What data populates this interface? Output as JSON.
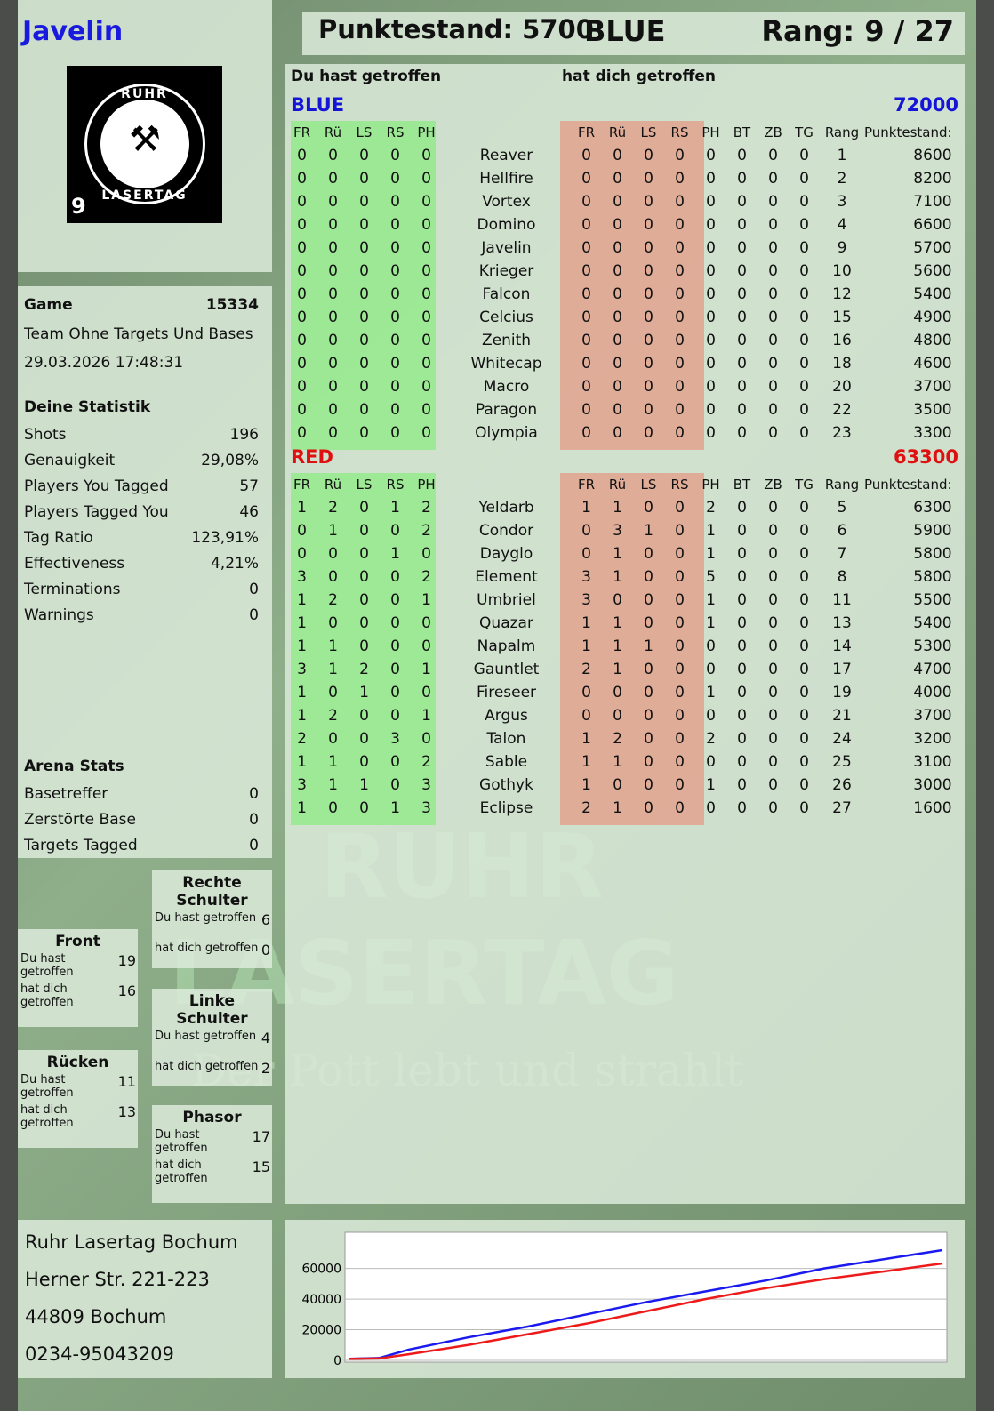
{
  "player": {
    "name": "Javelin",
    "score_label": "Punktestand: 5700",
    "team": "BLUE",
    "rank_label": "Rang: 9 / 27",
    "logo_text": "RUHR LASERTAG",
    "logo_number": "9"
  },
  "game": {
    "label": "Game",
    "id": "15334",
    "mode": "Team Ohne Targets Und Bases",
    "datetime": "29.03.2026 17:48:31"
  },
  "stats": {
    "title": "Deine Statistik",
    "rows": [
      [
        "Shots",
        "196"
      ],
      [
        "Genauigkeit",
        "29,08%"
      ],
      [
        "Players You Tagged",
        "57"
      ],
      [
        "Players Tagged You",
        "46"
      ],
      [
        "Tag Ratio",
        "123,91%"
      ],
      [
        "Effectiveness",
        "4,21%"
      ],
      [
        "Terminations",
        "0"
      ],
      [
        "Warnings",
        "0"
      ]
    ]
  },
  "arena": {
    "title": "Arena Stats",
    "rows": [
      [
        "Basetreffer",
        "0"
      ],
      [
        "Zerstörte Base",
        "0"
      ],
      [
        "Targets Tagged",
        "0"
      ]
    ]
  },
  "hitzones": [
    {
      "title": "Rechte Schulter",
      "you_hit_label": "Du hast getroffen",
      "you_hit": "6",
      "hit_you_label": "hat dich getroffen",
      "hit_you": "0"
    },
    {
      "title": "Front",
      "you_hit_label": "Du hast getroffen",
      "you_hit": "19",
      "hit_you_label": "hat dich getroffen",
      "hit_you": "16"
    },
    {
      "title": "Linke Schulter",
      "you_hit_label": "Du hast getroffen",
      "you_hit": "4",
      "hit_you_label": "hat dich getroffen",
      "hit_you": "2"
    },
    {
      "title": "Rücken",
      "you_hit_label": "Du hast getroffen",
      "you_hit": "11",
      "hit_you_label": "hat dich getroffen",
      "hit_you": "13"
    },
    {
      "title": "Phasor",
      "you_hit_label": "Du hast getroffen",
      "you_hit": "17",
      "hit_you_label": "hat dich getroffen",
      "hit_you": "15"
    }
  ],
  "address": [
    "Ruhr Lasertag Bochum",
    "Herner Str. 221-223",
    "44809 Bochum",
    "0234-95043209"
  ],
  "watermark": {
    "line1": "RUHR",
    "line2": "LASERTAG",
    "slogan": "Der Pott lebt und strahlt"
  },
  "table": {
    "you_hit_heading": "Du hast getroffen",
    "hit_you_heading": "hat dich getroffen",
    "columns": [
      "FR",
      "Rü",
      "LS",
      "RS",
      "PH",
      "",
      "FR",
      "Rü",
      "LS",
      "RS",
      "PH",
      "BT",
      "ZB",
      "TG",
      "Rang",
      "Punktestand:"
    ],
    "teams": [
      {
        "name": "BLUE",
        "score": "72000",
        "color": "#1515d8",
        "rows": [
          [
            "0",
            "0",
            "0",
            "0",
            "0",
            "Reaver",
            "0",
            "0",
            "0",
            "0",
            "0",
            "0",
            "0",
            "0",
            "1",
            "8600"
          ],
          [
            "0",
            "0",
            "0",
            "0",
            "0",
            "Hellfire",
            "0",
            "0",
            "0",
            "0",
            "0",
            "0",
            "0",
            "0",
            "2",
            "8200"
          ],
          [
            "0",
            "0",
            "0",
            "0",
            "0",
            "Vortex",
            "0",
            "0",
            "0",
            "0",
            "0",
            "0",
            "0",
            "0",
            "3",
            "7100"
          ],
          [
            "0",
            "0",
            "0",
            "0",
            "0",
            "Domino",
            "0",
            "0",
            "0",
            "0",
            "0",
            "0",
            "0",
            "0",
            "4",
            "6600"
          ],
          [
            "0",
            "0",
            "0",
            "0",
            "0",
            "Javelin",
            "0",
            "0",
            "0",
            "0",
            "0",
            "0",
            "0",
            "0",
            "9",
            "5700"
          ],
          [
            "0",
            "0",
            "0",
            "0",
            "0",
            "Krieger",
            "0",
            "0",
            "0",
            "0",
            "0",
            "0",
            "0",
            "0",
            "10",
            "5600"
          ],
          [
            "0",
            "0",
            "0",
            "0",
            "0",
            "Falcon",
            "0",
            "0",
            "0",
            "0",
            "0",
            "0",
            "0",
            "0",
            "12",
            "5400"
          ],
          [
            "0",
            "0",
            "0",
            "0",
            "0",
            "Celcius",
            "0",
            "0",
            "0",
            "0",
            "0",
            "0",
            "0",
            "0",
            "15",
            "4900"
          ],
          [
            "0",
            "0",
            "0",
            "0",
            "0",
            "Zenith",
            "0",
            "0",
            "0",
            "0",
            "0",
            "0",
            "0",
            "0",
            "16",
            "4800"
          ],
          [
            "0",
            "0",
            "0",
            "0",
            "0",
            "Whitecap",
            "0",
            "0",
            "0",
            "0",
            "0",
            "0",
            "0",
            "0",
            "18",
            "4600"
          ],
          [
            "0",
            "0",
            "0",
            "0",
            "0",
            "Macro",
            "0",
            "0",
            "0",
            "0",
            "0",
            "0",
            "0",
            "0",
            "20",
            "3700"
          ],
          [
            "0",
            "0",
            "0",
            "0",
            "0",
            "Paragon",
            "0",
            "0",
            "0",
            "0",
            "0",
            "0",
            "0",
            "0",
            "22",
            "3500"
          ],
          [
            "0",
            "0",
            "0",
            "0",
            "0",
            "Olympia",
            "0",
            "0",
            "0",
            "0",
            "0",
            "0",
            "0",
            "0",
            "23",
            "3300"
          ]
        ]
      },
      {
        "name": "RED",
        "score": "63300",
        "color": "#e01010",
        "rows": [
          [
            "1",
            "2",
            "0",
            "1",
            "2",
            "Yeldarb",
            "1",
            "1",
            "0",
            "0",
            "2",
            "0",
            "0",
            "0",
            "5",
            "6300"
          ],
          [
            "0",
            "1",
            "0",
            "0",
            "2",
            "Condor",
            "0",
            "3",
            "1",
            "0",
            "1",
            "0",
            "0",
            "0",
            "6",
            "5900"
          ],
          [
            "0",
            "0",
            "0",
            "1",
            "0",
            "Dayglo",
            "0",
            "1",
            "0",
            "0",
            "1",
            "0",
            "0",
            "0",
            "7",
            "5800"
          ],
          [
            "3",
            "0",
            "0",
            "0",
            "2",
            "Element",
            "3",
            "1",
            "0",
            "0",
            "5",
            "0",
            "0",
            "0",
            "8",
            "5800"
          ],
          [
            "1",
            "2",
            "0",
            "0",
            "1",
            "Umbriel",
            "3",
            "0",
            "0",
            "0",
            "1",
            "0",
            "0",
            "0",
            "11",
            "5500"
          ],
          [
            "1",
            "0",
            "0",
            "0",
            "0",
            "Quazar",
            "1",
            "1",
            "0",
            "0",
            "1",
            "0",
            "0",
            "0",
            "13",
            "5400"
          ],
          [
            "1",
            "1",
            "0",
            "0",
            "0",
            "Napalm",
            "1",
            "1",
            "1",
            "0",
            "0",
            "0",
            "0",
            "0",
            "14",
            "5300"
          ],
          [
            "3",
            "1",
            "2",
            "0",
            "1",
            "Gauntlet",
            "2",
            "1",
            "0",
            "0",
            "0",
            "0",
            "0",
            "0",
            "17",
            "4700"
          ],
          [
            "1",
            "0",
            "1",
            "0",
            "0",
            "Fireseer",
            "0",
            "0",
            "0",
            "0",
            "1",
            "0",
            "0",
            "0",
            "19",
            "4000"
          ],
          [
            "1",
            "2",
            "0",
            "0",
            "1",
            "Argus",
            "0",
            "0",
            "0",
            "0",
            "0",
            "0",
            "0",
            "0",
            "21",
            "3700"
          ],
          [
            "2",
            "0",
            "0",
            "3",
            "0",
            "Talon",
            "1",
            "2",
            "0",
            "0",
            "2",
            "0",
            "0",
            "0",
            "24",
            "3200"
          ],
          [
            "1",
            "1",
            "0",
            "0",
            "2",
            "Sable",
            "1",
            "1",
            "0",
            "0",
            "0",
            "0",
            "0",
            "0",
            "25",
            "3100"
          ],
          [
            "3",
            "1",
            "1",
            "0",
            "3",
            "Gothyk",
            "1",
            "0",
            "0",
            "0",
            "1",
            "0",
            "0",
            "0",
            "26",
            "3000"
          ],
          [
            "1",
            "0",
            "0",
            "1",
            "3",
            "Eclipse",
            "2",
            "1",
            "0",
            "0",
            "0",
            "0",
            "0",
            "0",
            "27",
            "1600"
          ]
        ]
      }
    ]
  },
  "chart_data": {
    "type": "line",
    "title": "",
    "xlabel": "",
    "ylabel": "",
    "ylim": [
      0,
      72000
    ],
    "yticks": [
      "0",
      "20000",
      "40000",
      "60000"
    ],
    "grid": true,
    "x": [
      0,
      5,
      10,
      20,
      30,
      40,
      50,
      60,
      70,
      80,
      90,
      100
    ],
    "series": [
      {
        "color": "#1a1af0",
        "values": [
          1000,
          1500,
          7000,
          15000,
          22000,
          30000,
          38000,
          45000,
          52000,
          60000,
          66000,
          72000
        ]
      },
      {
        "color": "#ee1a1a",
        "values": [
          1000,
          1200,
          4000,
          10000,
          17000,
          24000,
          32000,
          40000,
          47000,
          53000,
          58000,
          63300
        ]
      }
    ]
  }
}
